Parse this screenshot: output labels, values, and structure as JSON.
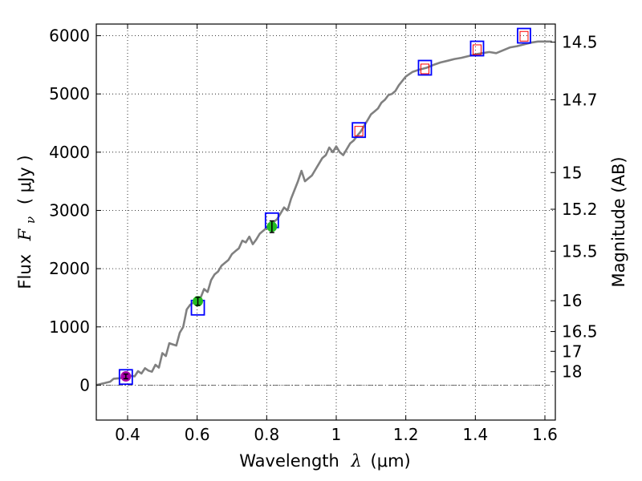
{
  "chart_data": {
    "type": "line",
    "title": "",
    "xlabel": "Wavelength",
    "xlabel_symbol": "λ",
    "xlabel_unit": "(μm)",
    "ylabel": "Flux",
    "ylabel_symbol": "F",
    "ylabel_subscript": "ν",
    "ylabel_unit": "( μJy )",
    "y2label": "Magnitude (AB)",
    "xlim": [
      0.31,
      1.63
    ],
    "ylim": [
      -600,
      6200
    ],
    "grid": true,
    "x_ticks": [
      0.4,
      0.6,
      0.8,
      1.0,
      1.2,
      1.4,
      1.6
    ],
    "x_tick_labels": [
      "0.4",
      "0.6",
      "0.8",
      "1",
      "1.2",
      "1.4",
      "1.6"
    ],
    "y_ticks": [
      0,
      1000,
      2000,
      3000,
      4000,
      5000,
      6000
    ],
    "y_tick_labels": [
      "0",
      "1000",
      "2000",
      "3000",
      "4000",
      "5000",
      "6000"
    ],
    "y2_ticks": [
      {
        "label": "14.5",
        "flux": 5890
      },
      {
        "label": "14.7",
        "flux": 4900
      },
      {
        "label": "15",
        "flux": 3650
      },
      {
        "label": "15.2",
        "flux": 3020
      },
      {
        "label": "15.5",
        "flux": 2300
      },
      {
        "label": "16",
        "flux": 1450
      },
      {
        "label": "16.5",
        "flux": 920
      },
      {
        "label": "17",
        "flux": 580
      },
      {
        "label": "18",
        "flux": 230
      }
    ],
    "zero_line": 0,
    "spectrum": {
      "color": "#808080",
      "x": [
        0.31,
        0.33,
        0.35,
        0.36,
        0.38,
        0.39,
        0.4,
        0.42,
        0.43,
        0.44,
        0.45,
        0.46,
        0.47,
        0.48,
        0.49,
        0.5,
        0.51,
        0.52,
        0.53,
        0.54,
        0.55,
        0.56,
        0.57,
        0.58,
        0.59,
        0.6,
        0.61,
        0.62,
        0.63,
        0.64,
        0.65,
        0.66,
        0.67,
        0.68,
        0.69,
        0.7,
        0.71,
        0.72,
        0.73,
        0.74,
        0.75,
        0.76,
        0.77,
        0.78,
        0.79,
        0.8,
        0.81,
        0.82,
        0.83,
        0.84,
        0.85,
        0.86,
        0.87,
        0.88,
        0.89,
        0.9,
        0.91,
        0.92,
        0.93,
        0.94,
        0.95,
        0.96,
        0.97,
        0.98,
        0.99,
        1.0,
        1.01,
        1.02,
        1.03,
        1.04,
        1.05,
        1.06,
        1.07,
        1.08,
        1.09,
        1.1,
        1.11,
        1.12,
        1.13,
        1.14,
        1.15,
        1.16,
        1.17,
        1.18,
        1.2,
        1.22,
        1.24,
        1.26,
        1.28,
        1.3,
        1.32,
        1.34,
        1.36,
        1.38,
        1.4,
        1.42,
        1.44,
        1.46,
        1.48,
        1.5,
        1.52,
        1.54,
        1.56,
        1.58,
        1.6,
        1.62
      ],
      "y": [
        0,
        30,
        60,
        110,
        120,
        150,
        170,
        150,
        240,
        200,
        290,
        250,
        230,
        350,
        300,
        550,
        500,
        720,
        700,
        680,
        900,
        1000,
        1300,
        1380,
        1420,
        1430,
        1500,
        1650,
        1600,
        1800,
        1900,
        1950,
        2050,
        2100,
        2150,
        2250,
        2300,
        2350,
        2480,
        2450,
        2550,
        2420,
        2500,
        2600,
        2650,
        2700,
        2720,
        2800,
        2850,
        2950,
        3050,
        3000,
        3200,
        3350,
        3500,
        3680,
        3500,
        3550,
        3600,
        3700,
        3800,
        3900,
        3950,
        4080,
        4000,
        4100,
        4000,
        3950,
        4050,
        4150,
        4200,
        4280,
        4350,
        4450,
        4550,
        4650,
        4700,
        4750,
        4850,
        4900,
        4980,
        5000,
        5050,
        5150,
        5300,
        5380,
        5420,
        5450,
        5500,
        5540,
        5570,
        5600,
        5620,
        5650,
        5680,
        5700,
        5720,
        5700,
        5750,
        5800,
        5820,
        5850,
        5880,
        5900,
        5900,
        5900
      ]
    },
    "photometry": [
      {
        "x": 0.395,
        "y": 150,
        "err": 40,
        "color": "#aa00aa",
        "kind": "circle"
      },
      {
        "x": 0.602,
        "y": 1440,
        "err": 70,
        "color": "#22bb22",
        "kind": "circle"
      },
      {
        "x": 0.815,
        "y": 2720,
        "err": 100,
        "color": "#22bb22",
        "kind": "circle"
      }
    ],
    "model_boxes": [
      {
        "x": 0.395,
        "y": 140,
        "color": "#0000ff"
      },
      {
        "x": 0.602,
        "y": 1330,
        "color": "#0000ff"
      },
      {
        "x": 0.815,
        "y": 2830,
        "color": "#0000ff"
      },
      {
        "x": 1.065,
        "y": 4380,
        "color": "#0000ff"
      },
      {
        "x": 1.255,
        "y": 5450,
        "color": "#0000ff"
      },
      {
        "x": 1.405,
        "y": 5780,
        "color": "#0000ff"
      },
      {
        "x": 1.54,
        "y": 6000,
        "color": "#0000ff"
      }
    ],
    "red_boxes": [
      {
        "x": 1.065,
        "y": 4360,
        "color": "#ff0000"
      },
      {
        "x": 1.255,
        "y": 5430,
        "color": "#ff0000"
      },
      {
        "x": 1.405,
        "y": 5760,
        "color": "#ff0000"
      },
      {
        "x": 1.54,
        "y": 5990,
        "color": "#ff0000"
      }
    ]
  }
}
